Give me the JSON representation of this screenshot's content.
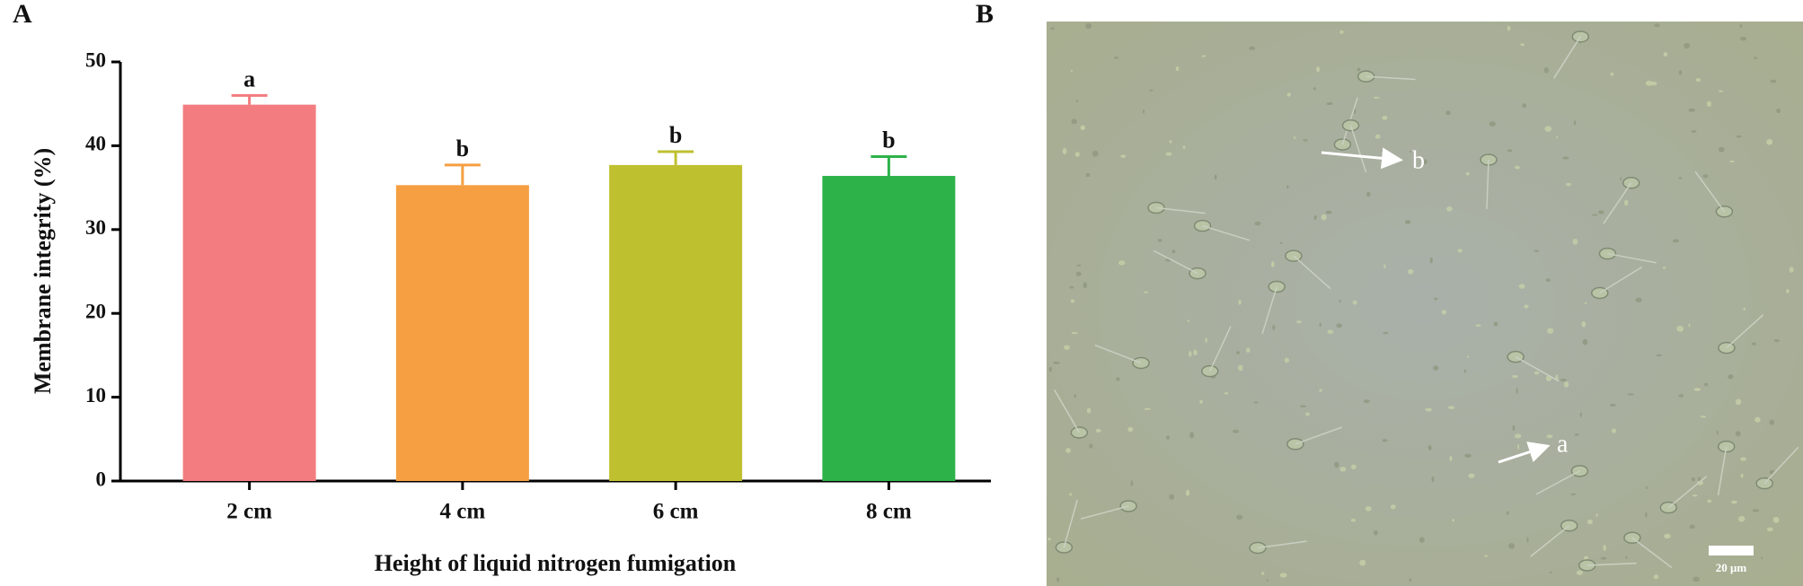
{
  "panel_labels": [
    "A",
    "B"
  ],
  "chart_data": {
    "type": "bar",
    "y_label": "Membrane integrity (%)",
    "x_label": "Height of liquid nitrogen fumigation",
    "categories": [
      "2 cm",
      "4 cm",
      "6 cm",
      "8 cm"
    ],
    "values": [
      44.9,
      35.3,
      37.7,
      36.4
    ],
    "errors": [
      1.1,
      2.4,
      1.6,
      2.3
    ],
    "significance": [
      "a",
      "b",
      "b",
      "b"
    ],
    "colors": [
      "#f27c7f",
      "#f59f42",
      "#bfc030",
      "#2db24a"
    ],
    "ylim": [
      0,
      50
    ],
    "yticks": [
      0,
      10,
      20,
      30,
      40,
      50
    ],
    "grid": false
  },
  "micrograph": {
    "arrow_labels": [
      "b",
      "a"
    ],
    "scale_bar": "20 μm"
  }
}
